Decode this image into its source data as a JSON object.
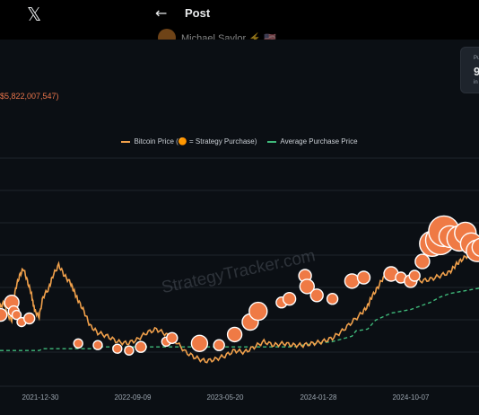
{
  "x_header": {
    "logo_glyph": "𝕏",
    "back_glyph": "←",
    "title": "Post",
    "author": "Michael Saylor ⚡ 🇺🇸"
  },
  "chart_panel": {
    "total_value_text": "$5,822,007,547)",
    "stat_card": {
      "label": "Pu",
      "value": "9",
      "sub": "in"
    },
    "legend": {
      "price_label": "Bitcoin Price (🟠 = Strategy Purchase)",
      "avg_label": "Average Purchase Price"
    },
    "watermark": "StrategyTracker.com",
    "colors": {
      "price_line": "#f0a04b",
      "purchase_dot": "#ef7a45",
      "avg_line": "#3fb97a",
      "grid": "#1f252d"
    }
  },
  "chart_data": {
    "type": "line",
    "x_tick_labels": [
      "2021-12-30",
      "2022-09-09",
      "2023-05-20",
      "2024-01-28",
      "2024-10-07"
    ],
    "series": [
      {
        "name": "Bitcoin Price (🟠 = Strategy Purchase)",
        "points": [
          [
            0,
            0.34
          ],
          [
            0.02,
            0.37
          ],
          [
            0.04,
            0.3
          ],
          [
            0.06,
            0.27
          ],
          [
            0.08,
            0.45
          ],
          [
            0.1,
            0.52
          ],
          [
            0.12,
            0.56
          ],
          [
            0.14,
            0.49
          ],
          [
            0.16,
            0.42
          ],
          [
            0.17,
            0.36
          ],
          [
            0.18,
            0.32
          ],
          [
            0.2,
            0.29
          ],
          [
            0.22,
            0.4
          ],
          [
            0.25,
            0.45
          ],
          [
            0.27,
            0.52
          ],
          [
            0.3,
            0.58
          ],
          [
            0.33,
            0.52
          ],
          [
            0.36,
            0.48
          ],
          [
            0.38,
            0.43
          ],
          [
            0.4,
            0.38
          ],
          [
            0.43,
            0.32
          ],
          [
            0.46,
            0.24
          ],
          [
            0.5,
            0.2
          ],
          [
            0.55,
            0.18
          ],
          [
            0.6,
            0.15
          ],
          [
            0.65,
            0.14
          ],
          [
            0.7,
            0.16
          ],
          [
            0.75,
            0.2
          ],
          [
            0.8,
            0.22
          ],
          [
            0.85,
            0.19
          ],
          [
            0.9,
            0.15
          ],
          [
            0.95,
            0.09
          ],
          [
            1.0,
            0.06
          ],
          [
            1.05,
            0.04
          ],
          [
            1.1,
            0.05
          ],
          [
            1.15,
            0.07
          ],
          [
            1.2,
            0.1
          ],
          [
            1.25,
            0.09
          ],
          [
            1.3,
            0.12
          ],
          [
            1.35,
            0.15
          ],
          [
            1.4,
            0.13
          ],
          [
            1.45,
            0.14
          ],
          [
            1.5,
            0.13
          ],
          [
            1.55,
            0.13
          ],
          [
            1.6,
            0.14
          ],
          [
            1.65,
            0.15
          ],
          [
            1.7,
            0.17
          ],
          [
            1.75,
            0.21
          ],
          [
            1.8,
            0.26
          ],
          [
            1.85,
            0.31
          ],
          [
            1.88,
            0.35
          ],
          [
            1.9,
            0.4
          ],
          [
            1.93,
            0.45
          ],
          [
            1.96,
            0.51
          ],
          [
            2.0,
            0.53
          ],
          [
            2.05,
            0.51
          ],
          [
            2.1,
            0.5
          ],
          [
            2.15,
            0.49
          ],
          [
            2.2,
            0.5
          ],
          [
            2.25,
            0.52
          ],
          [
            2.3,
            0.54
          ],
          [
            2.33,
            0.58
          ],
          [
            2.36,
            0.61
          ],
          [
            2.4,
            0.64
          ],
          [
            2.45,
            0.65
          ],
          [
            2.5,
            0.63
          ]
        ]
      },
      {
        "name": "Average Purchase Price",
        "points": [
          [
            0,
            0.1
          ],
          [
            0.2,
            0.1
          ],
          [
            0.22,
            0.11
          ],
          [
            0.5,
            0.11
          ],
          [
            0.52,
            0.12
          ],
          [
            1.0,
            0.12
          ],
          [
            1.02,
            0.12
          ],
          [
            1.5,
            0.12
          ],
          [
            1.55,
            0.13
          ],
          [
            1.62,
            0.14
          ],
          [
            1.7,
            0.15
          ],
          [
            1.8,
            0.18
          ],
          [
            1.82,
            0.21
          ],
          [
            1.88,
            0.22
          ],
          [
            1.92,
            0.27
          ],
          [
            2.0,
            0.31
          ],
          [
            2.05,
            0.32
          ],
          [
            2.1,
            0.33
          ],
          [
            2.2,
            0.37
          ],
          [
            2.25,
            0.4
          ],
          [
            2.3,
            0.42
          ],
          [
            2.4,
            0.44
          ],
          [
            2.5,
            0.46
          ]
        ]
      }
    ],
    "purchases": [
      [
        0.003,
        0.3,
        7
      ],
      [
        0.06,
        0.37,
        8
      ],
      [
        0.07,
        0.32,
        6
      ],
      [
        0.085,
        0.3,
        5
      ],
      [
        0.11,
        0.26,
        5
      ],
      [
        0.15,
        0.28,
        6
      ],
      [
        0.4,
        0.14,
        5
      ],
      [
        0.5,
        0.13,
        5
      ],
      [
        0.6,
        0.11,
        5
      ],
      [
        0.66,
        0.1,
        5
      ],
      [
        0.72,
        0.12,
        6
      ],
      [
        0.85,
        0.15,
        5
      ],
      [
        0.88,
        0.17,
        6
      ],
      [
        1.02,
        0.14,
        9
      ],
      [
        1.12,
        0.13,
        6
      ],
      [
        1.2,
        0.19,
        8
      ],
      [
        1.28,
        0.26,
        9
      ],
      [
        1.32,
        0.32,
        10
      ],
      [
        1.44,
        0.37,
        6
      ],
      [
        1.48,
        0.39,
        7
      ],
      [
        1.56,
        0.52,
        7
      ],
      [
        1.57,
        0.46,
        8
      ],
      [
        1.62,
        0.41,
        7
      ],
      [
        1.7,
        0.39,
        6
      ],
      [
        1.8,
        0.49,
        8
      ],
      [
        1.86,
        0.51,
        7
      ],
      [
        2.0,
        0.53,
        8
      ],
      [
        2.05,
        0.51,
        6
      ],
      [
        2.1,
        0.49,
        7
      ],
      [
        2.12,
        0.52,
        6
      ],
      [
        2.16,
        0.6,
        8
      ],
      [
        2.21,
        0.7,
        14
      ],
      [
        2.25,
        0.72,
        16
      ],
      [
        2.27,
        0.77,
        17
      ],
      [
        2.3,
        0.74,
        12
      ],
      [
        2.35,
        0.73,
        14
      ],
      [
        2.38,
        0.76,
        12
      ],
      [
        2.41,
        0.7,
        12
      ],
      [
        2.44,
        0.66,
        12
      ],
      [
        2.46,
        0.68,
        10
      ]
    ]
  }
}
